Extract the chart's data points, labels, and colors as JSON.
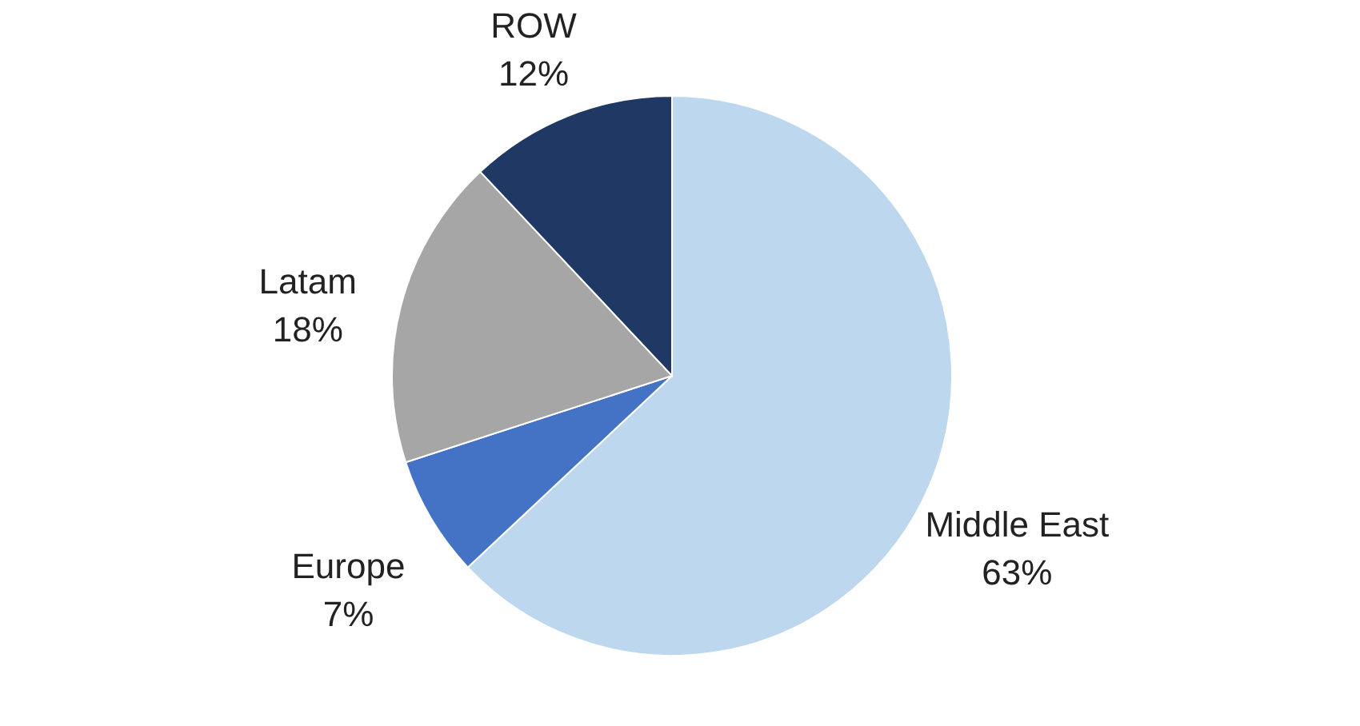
{
  "chart_data": {
    "type": "pie",
    "categories": [
      "Middle East",
      "Europe",
      "Latam",
      "ROW"
    ],
    "values": [
      63,
      7,
      18,
      12
    ],
    "value_labels": [
      "63%",
      "7%",
      "18%",
      "12%"
    ],
    "colors": [
      "#bdd7ee",
      "#4472c4",
      "#a6a6a6",
      "#1f3864"
    ],
    "legend": false
  }
}
